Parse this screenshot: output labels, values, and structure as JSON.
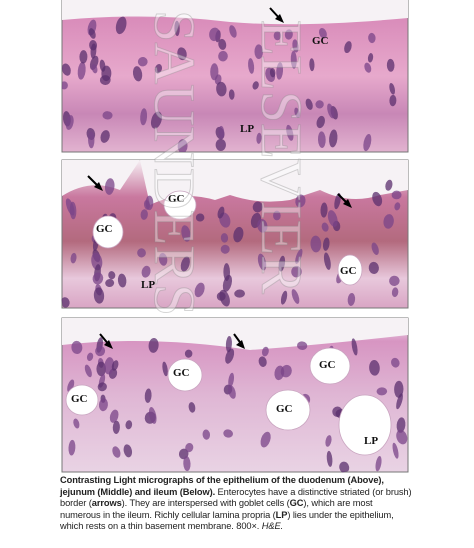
{
  "panels": [
    {
      "labels": [
        "GC",
        "LP"
      ]
    },
    {
      "labels": [
        "GC",
        "GC",
        "LP",
        "GC"
      ]
    },
    {
      "labels": [
        "GC",
        "GC",
        "GC",
        "GC",
        "LP"
      ]
    }
  ],
  "watermark": [
    "SAUNDERS",
    "ELSEVIER"
  ],
  "caption": {
    "title": "Contrasting Light micrographs of the epithelium of the duodenum (Above), jejunum (Middle) and ileum (Below).",
    "parts": [
      " Enterocytes have a distinctive striated (or brush) border (",
      "arrows",
      "). They are interspersed with goblet cells (",
      "GC",
      "), which are most numerous in the ileum. Richly cellular lamina propria (",
      "LP",
      ") lies under the epithelium, which rests on a thin basement membrane. 800×. ",
      "H&E."
    ]
  }
}
